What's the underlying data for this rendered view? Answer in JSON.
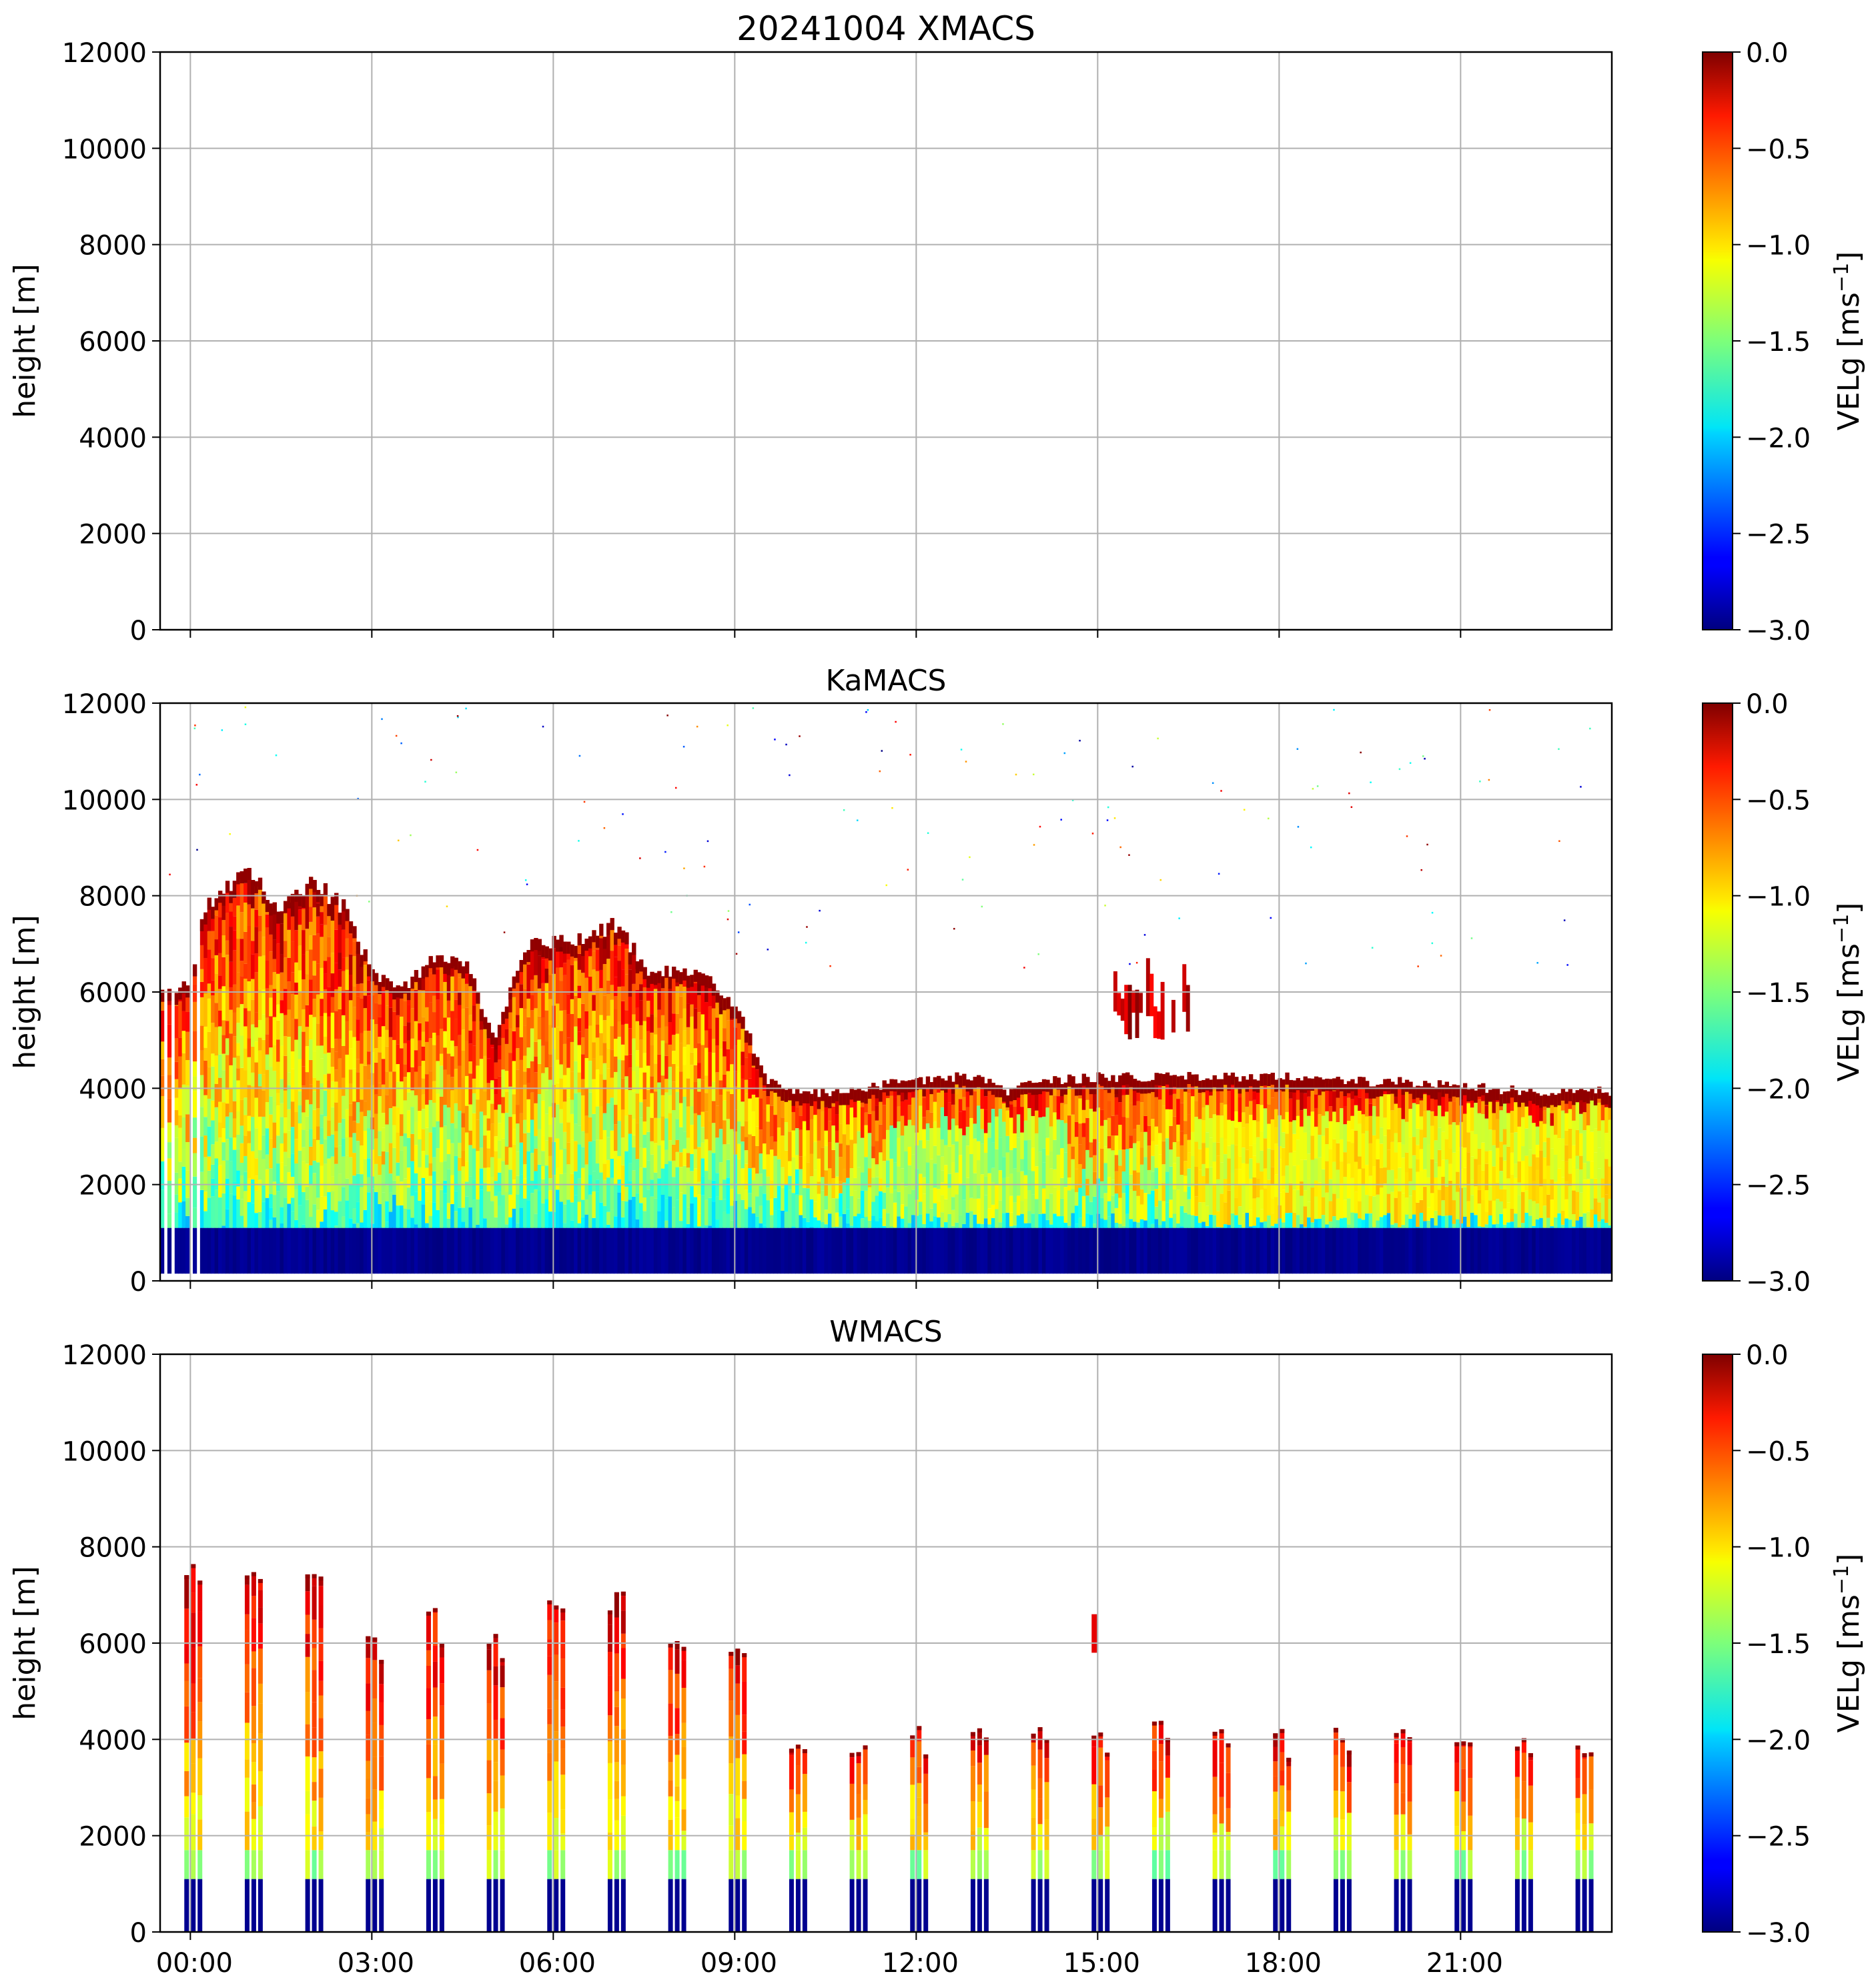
{
  "figure": {
    "title_prefix": "20241004",
    "colorbar": {
      "label": "VELg [ms$^{-1}$]",
      "label_main": "VELg [ms",
      "label_sup": "−1",
      "label_close": "]",
      "range": [
        -3.0,
        0.0
      ],
      "ticks": [
        "0.0",
        "−0.5",
        "−1.0",
        "−1.5",
        "−2.0",
        "−2.5",
        "−3.0"
      ],
      "tick_values": [
        0.0,
        -0.5,
        -1.0,
        -1.5,
        -2.0,
        -2.5,
        -3.0
      ],
      "colormap": "jet"
    }
  },
  "chart_data": [
    {
      "type": "heatmap",
      "title": "20241004 XMACS",
      "xlabel": "",
      "ylabel": "height [m]",
      "xlim_hours": [
        -0.5,
        23.5
      ],
      "ylim": [
        0,
        12000
      ],
      "y_ticks": [
        "0",
        "2000",
        "4000",
        "6000",
        "8000",
        "10000",
        "12000"
      ],
      "y_tick_values": [
        0,
        2000,
        4000,
        6000,
        8000,
        10000,
        12000
      ],
      "x_tick_hours": [
        0,
        3,
        6,
        9,
        12,
        15,
        18,
        21
      ],
      "x_ticklabels_shown": false,
      "grid": true,
      "data_present": false
    },
    {
      "type": "heatmap",
      "title": "KaMACS",
      "xlabel": "",
      "ylabel": "height [m]",
      "xlim_hours": [
        -0.5,
        23.5
      ],
      "ylim": [
        0,
        12000
      ],
      "y_ticks": [
        "0",
        "2000",
        "4000",
        "6000",
        "8000",
        "10000",
        "12000"
      ],
      "y_tick_values": [
        0,
        2000,
        4000,
        6000,
        8000,
        10000,
        12000
      ],
      "x_tick_hours": [
        0,
        3,
        6,
        9,
        12,
        15,
        18,
        21
      ],
      "x_ticklabels_shown": false,
      "grid": true,
      "data_present": true,
      "continuous": true,
      "cloud_top_profile_m": [
        [
          -0.5,
          6200
        ],
        [
          0.0,
          6200
        ],
        [
          0.2,
          7800
        ],
        [
          0.6,
          8400
        ],
        [
          1.0,
          8600
        ],
        [
          1.5,
          7800
        ],
        [
          2.0,
          8400
        ],
        [
          2.5,
          7900
        ],
        [
          3.0,
          6400
        ],
        [
          3.5,
          6200
        ],
        [
          4.0,
          6800
        ],
        [
          4.5,
          6800
        ],
        [
          5.0,
          5000
        ],
        [
          5.5,
          7000
        ],
        [
          6.0,
          7200
        ],
        [
          6.5,
          7200
        ],
        [
          7.0,
          7500
        ],
        [
          7.5,
          6600
        ],
        [
          8.0,
          6500
        ],
        [
          8.5,
          6400
        ],
        [
          9.0,
          5800
        ],
        [
          9.5,
          4200
        ],
        [
          10.0,
          4000
        ],
        [
          10.5,
          3950
        ],
        [
          11.0,
          4000
        ],
        [
          11.5,
          4150
        ],
        [
          12.0,
          4200
        ],
        [
          12.5,
          4300
        ],
        [
          13.0,
          4300
        ],
        [
          13.5,
          4000
        ],
        [
          14.0,
          4200
        ],
        [
          15.0,
          4300
        ],
        [
          16.0,
          4300
        ],
        [
          17.0,
          4300
        ],
        [
          18.0,
          4300
        ],
        [
          19.0,
          4200
        ],
        [
          20.0,
          4200
        ],
        [
          21.0,
          4100
        ],
        [
          22.0,
          4000
        ],
        [
          23.5,
          4000
        ]
      ],
      "elevated_patches_m": [
        {
          "t_start": 15.2,
          "t_end": 16.5,
          "base": 5000,
          "top": 6800
        }
      ],
      "surface_layer_top_m": 1100,
      "surface_layer_value": -3.0,
      "lowest_valid_height_m": 150,
      "clutter_gap_hours": [
        -0.5,
        0.1
      ]
    },
    {
      "type": "heatmap",
      "title": "WMACS",
      "xlabel": "",
      "ylabel": "height [m]",
      "xlim_hours": [
        -0.5,
        23.5
      ],
      "ylim": [
        0,
        12000
      ],
      "y_ticks": [
        "0",
        "2000",
        "4000",
        "6000",
        "8000",
        "10000",
        "12000"
      ],
      "y_tick_values": [
        0,
        2000,
        4000,
        6000,
        8000,
        10000,
        12000
      ],
      "x_ticks": [
        "00:00",
        "03:00",
        "06:00",
        "09:00",
        "12:00",
        "15:00",
        "18:00",
        "21:00"
      ],
      "x_tick_hours": [
        0,
        3,
        6,
        9,
        12,
        15,
        18,
        21
      ],
      "x_ticklabels_shown": true,
      "grid": true,
      "data_present": true,
      "continuous": false,
      "profile_bursts": [
        {
          "t": 0.0,
          "top_m": 7800
        },
        {
          "t": 1.0,
          "top_m": 7700
        },
        {
          "t": 2.0,
          "top_m": 8000
        },
        {
          "t": 3.0,
          "top_m": 6400
        },
        {
          "t": 4.0,
          "top_m": 6800
        },
        {
          "t": 5.0,
          "top_m": 6400
        },
        {
          "t": 6.0,
          "top_m": 7200
        },
        {
          "t": 7.0,
          "top_m": 7200
        },
        {
          "t": 8.0,
          "top_m": 6300
        },
        {
          "t": 9.0,
          "top_m": 6100
        },
        {
          "t": 10.0,
          "top_m": 4000
        },
        {
          "t": 11.0,
          "top_m": 4000
        },
        {
          "t": 12.0,
          "top_m": 4300
        },
        {
          "t": 13.0,
          "top_m": 4400
        },
        {
          "t": 14.0,
          "top_m": 4300
        },
        {
          "t": 15.0,
          "top_m": 4300
        },
        {
          "t": 16.0,
          "top_m": 4400
        },
        {
          "t": 17.0,
          "top_m": 4300
        },
        {
          "t": 18.0,
          "top_m": 4300
        },
        {
          "t": 19.0,
          "top_m": 4300
        },
        {
          "t": 20.0,
          "top_m": 4300
        },
        {
          "t": 21.0,
          "top_m": 4100
        },
        {
          "t": 22.0,
          "top_m": 4100
        },
        {
          "t": 23.0,
          "top_m": 4000
        }
      ],
      "surface_layer_top_m": 1100
    }
  ]
}
